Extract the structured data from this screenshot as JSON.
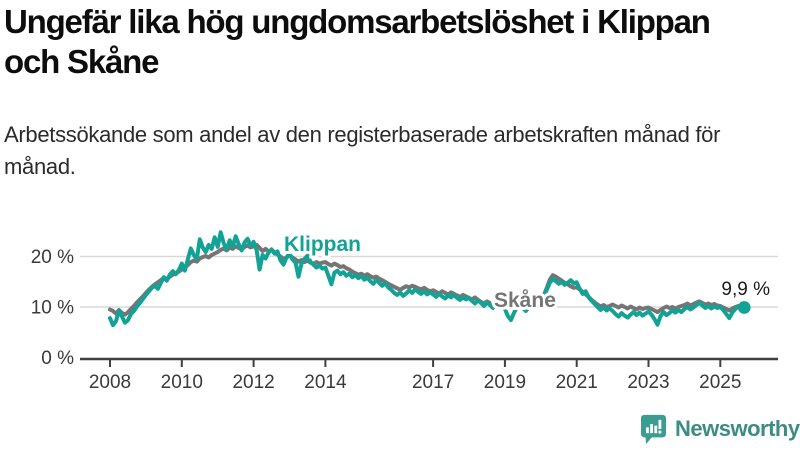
{
  "page": {
    "title": "Ungefär lika hög ungdomsarbetslöshet i Klippan och Skåne",
    "subtitle": "Arbetssökande som andel av den registerbaserade arbetskraften månad för månad."
  },
  "branding": {
    "logo_text": "Newsworthy",
    "logo_icon": "bar-chart-speech-bubble-icon",
    "logo_color": "#3b9c92",
    "wordmark_color": "#3d8c84"
  },
  "chart_data": {
    "type": "line",
    "frequency": "monthly",
    "x_start": "2008-01",
    "x_end": "2025-09",
    "unit": "%",
    "ylim": [
      0,
      26
    ],
    "grid": true,
    "legend_position": "inline-labels",
    "y_ticks": [
      {
        "value": 0,
        "label": "0 %"
      },
      {
        "value": 10,
        "label": "10 %"
      },
      {
        "value": 20,
        "label": "20 %"
      }
    ],
    "x_tick_years": [
      2008,
      2010,
      2012,
      2014,
      2017,
      2019,
      2021,
      2023,
      2025
    ],
    "annotation": {
      "text": "9,9 %",
      "attached_to": "Klippan",
      "value": 9.9
    },
    "series": [
      {
        "name": "Skåne",
        "color": "#757575",
        "values": [
          9.5,
          9.2,
          8.7,
          9.4,
          8.8,
          8.5,
          9.0,
          9.6,
          10.2,
          10.9,
          11.5,
          12.1,
          12.8,
          13.4,
          14.0,
          14.5,
          14.9,
          15.3,
          15.8,
          15.5,
          16.0,
          16.4,
          16.7,
          17.0,
          17.4,
          17.8,
          18.3,
          18.9,
          19.2,
          19.0,
          19.6,
          19.9,
          20.1,
          19.8,
          20.3,
          20.6,
          20.9,
          21.3,
          21.6,
          21.2,
          21.8,
          21.5,
          22.0,
          21.7,
          21.4,
          21.9,
          22.2,
          21.8,
          22.0,
          22.3,
          21.7,
          21.1,
          21.5,
          21.0,
          21.3,
          20.8,
          20.4,
          20.0,
          19.5,
          19.8,
          20.2,
          19.8,
          19.4,
          19.0,
          19.3,
          18.9,
          19.2,
          18.8,
          18.5,
          18.9,
          18.6,
          18.8,
          18.9,
          18.5,
          18.2,
          18.6,
          18.3,
          17.9,
          18.1,
          17.7,
          17.4,
          17.0,
          16.7,
          16.4,
          16.6,
          16.2,
          16.5,
          16.1,
          15.8,
          16.0,
          15.6,
          15.3,
          15.0,
          14.6,
          14.3,
          14.0,
          13.7,
          13.4,
          13.8,
          14.1,
          13.9,
          14.2,
          14.0,
          13.7,
          13.5,
          13.8,
          13.4,
          13.1,
          13.3,
          13.0,
          12.7,
          13.1,
          12.8,
          12.5,
          12.9,
          12.6,
          12.3,
          12.0,
          12.4,
          12.1,
          11.8,
          11.5,
          11.9,
          11.4,
          11.0,
          10.7,
          11.1,
          10.8,
          10.4,
          10.9,
          11.2,
          11.0,
          10.6,
          10.2,
          10.5,
          10.9,
          11.2,
          10.8,
          11.1,
          10.7,
          11.0,
          11.4,
          11.7,
          11.5,
          11.9,
          12.3,
          13.8,
          15.4,
          16.3,
          16.0,
          15.6,
          15.2,
          14.8,
          14.5,
          14.1,
          13.8,
          13.9,
          13.5,
          13.0,
          12.5,
          12.0,
          11.4,
          10.9,
          10.5,
          10.1,
          10.4,
          10.0,
          10.2,
          10.5,
          10.2,
          9.9,
          10.3,
          10.0,
          9.7,
          10.1,
          9.8,
          9.5,
          9.9,
          9.6,
          9.8,
          9.9,
          9.6,
          9.3,
          9.0,
          9.4,
          9.8,
          10.1,
          9.8,
          10.0,
          9.7,
          10.0,
          10.2,
          10.4,
          10.7,
          10.3,
          10.6,
          10.9,
          11.1,
          10.8,
          10.5,
          10.7,
          10.4,
          10.6,
          10.3,
          10.2,
          9.9,
          9.6,
          9.3,
          9.7,
          10.0,
          10.2,
          10.1,
          10.0
        ]
      },
      {
        "name": "Klippan",
        "color": "#13a296",
        "values": [
          7.8,
          6.4,
          7.2,
          9.3,
          8.1,
          6.9,
          7.4,
          8.6,
          9.2,
          10.1,
          10.8,
          11.6,
          12.4,
          13.1,
          13.8,
          14.2,
          13.6,
          14.8,
          15.9,
          15.2,
          16.4,
          17.1,
          16.5,
          17.3,
          18.6,
          17.2,
          19.4,
          21.6,
          20.3,
          19.5,
          23.4,
          21.8,
          20.9,
          22.3,
          21.5,
          23.8,
          21.9,
          24.8,
          22.6,
          21.4,
          23.2,
          22.0,
          24.0,
          22.5,
          21.2,
          22.8,
          23.5,
          22.1,
          22.9,
          21.3,
          17.4,
          20.3,
          19.6,
          20.8,
          21.4,
          20.6,
          21.0,
          19.2,
          18.4,
          19.8,
          20.6,
          19.4,
          18.8,
          16.0,
          18.6,
          19.5,
          20.2,
          19.0,
          18.4,
          17.8,
          18.2,
          17.6,
          17.8,
          16.2,
          14.5,
          16.8,
          17.2,
          16.5,
          16.9,
          16.2,
          16.6,
          15.9,
          16.3,
          15.7,
          16.1,
          15.4,
          15.8,
          15.1,
          14.6,
          15.3,
          14.8,
          14.2,
          14.7,
          13.9,
          13.4,
          12.8,
          12.4,
          12.9,
          12.2,
          12.7,
          13.3,
          12.8,
          13.5,
          13.0,
          12.6,
          13.1,
          12.5,
          12.9,
          12.5,
          12.0,
          12.6,
          12.1,
          11.7,
          12.3,
          11.9,
          12.4,
          11.8,
          11.4,
          11.9,
          11.5,
          11.8,
          11.2,
          10.7,
          11.3,
          10.8,
          10.2,
          10.9,
          10.4,
          9.8,
          10.6,
          11.0,
          10.5,
          9.6,
          8.2,
          7.4,
          8.8,
          9.9,
          10.6,
          9.8,
          9.2,
          9.9,
          10.4,
          10.9,
          11.3,
          11.7,
          12.1,
          13.4,
          14.8,
          15.6,
          15.1,
          14.6,
          15.0,
          14.4,
          14.8,
          15.3,
          14.7,
          14.9,
          13.6,
          12.6,
          13.1,
          11.9,
          11.2,
          10.6,
          10.0,
          9.4,
          9.9,
          9.3,
          9.7,
          9.2,
          8.6,
          8.1,
          8.8,
          8.3,
          7.9,
          8.5,
          9.0,
          8.4,
          8.9,
          8.3,
          8.7,
          9.1,
          8.5,
          7.6,
          6.5,
          8.2,
          9.0,
          8.4,
          8.8,
          9.3,
          8.9,
          9.4,
          9.0,
          9.6,
          10.0,
          9.5,
          9.9,
          10.4,
          10.8,
          10.3,
          9.8,
          10.2,
          9.7,
          10.1,
          9.8,
          10.0,
          9.4,
          8.6,
          7.8,
          8.9,
          9.6,
          10.1,
          9.7,
          9.9
        ]
      }
    ]
  }
}
